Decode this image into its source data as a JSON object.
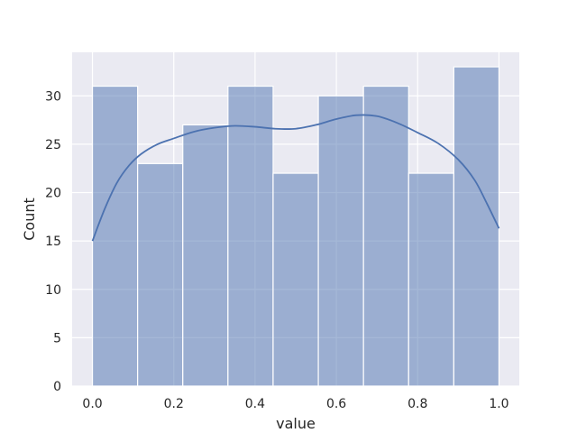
{
  "chart_data": {
    "type": "bar",
    "subtype": "histogram_with_kde",
    "xlabel": "value",
    "ylabel": "Count",
    "xlim": [
      -0.05,
      1.05
    ],
    "ylim": [
      0,
      34.5
    ],
    "grid": true,
    "background": "#eaeaf2",
    "bar_color": "#4c72b0",
    "bar_opacity": 0.5,
    "line_color": "#4c72b0",
    "x_ticks": [
      0.0,
      0.2,
      0.4,
      0.6,
      0.8,
      1.0
    ],
    "x_tick_labels": [
      "0.0",
      "0.2",
      "0.4",
      "0.6",
      "0.8",
      "1.0"
    ],
    "y_ticks": [
      0,
      5,
      10,
      15,
      20,
      25,
      30
    ],
    "y_tick_labels": [
      "0",
      "5",
      "10",
      "15",
      "20",
      "25",
      "30"
    ],
    "bins": [
      {
        "start": 0.0,
        "end": 0.1111,
        "count": 31
      },
      {
        "start": 0.1111,
        "end": 0.2222,
        "count": 23
      },
      {
        "start": 0.2222,
        "end": 0.3333,
        "count": 27
      },
      {
        "start": 0.3333,
        "end": 0.4444,
        "count": 31
      },
      {
        "start": 0.4444,
        "end": 0.5556,
        "count": 22
      },
      {
        "start": 0.5556,
        "end": 0.6667,
        "count": 30
      },
      {
        "start": 0.6667,
        "end": 0.7778,
        "count": 31
      },
      {
        "start": 0.7778,
        "end": 0.8889,
        "count": 22
      },
      {
        "start": 0.8889,
        "end": 1.0,
        "count": 33
      }
    ],
    "kde": {
      "x": [
        0.0,
        0.03,
        0.06,
        0.09,
        0.12,
        0.16,
        0.2,
        0.25,
        0.3,
        0.35,
        0.4,
        0.45,
        0.5,
        0.55,
        0.6,
        0.65,
        0.7,
        0.75,
        0.8,
        0.85,
        0.9,
        0.94,
        0.97,
        1.0
      ],
      "y": [
        15.0,
        18.3,
        21.0,
        22.8,
        24.0,
        25.0,
        25.6,
        26.3,
        26.7,
        26.9,
        26.8,
        26.6,
        26.6,
        27.0,
        27.6,
        28.0,
        27.9,
        27.2,
        26.2,
        25.1,
        23.4,
        21.3,
        18.9,
        16.3
      ]
    }
  }
}
